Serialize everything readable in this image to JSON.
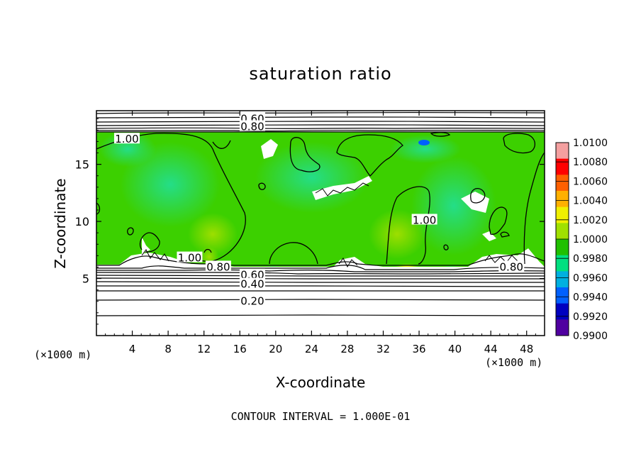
{
  "chart_data": {
    "type": "heatmap",
    "title": "saturation ratio",
    "xlabel": "X-coordinate",
    "ylabel": "Z-coordinate",
    "x_unit_left": "(×1000 m)",
    "x_unit_right": "(×1000 m)",
    "x_ticks": [
      "4",
      "8",
      "12",
      "16",
      "20",
      "24",
      "28",
      "32",
      "36",
      "40",
      "44",
      "48"
    ],
    "x_tick_values": [
      4,
      8,
      12,
      16,
      20,
      24,
      28,
      32,
      36,
      40,
      44,
      48
    ],
    "y_ticks": [
      "5",
      "10",
      "15"
    ],
    "y_tick_values": [
      5,
      10,
      15
    ],
    "xlim": [
      0,
      50
    ],
    "ylim": [
      0,
      19.7
    ],
    "colorbar": {
      "labels": [
        "1.0100",
        "1.0080",
        "1.0060",
        "1.0040",
        "1.0020",
        "1.0000",
        "0.9980",
        "0.9960",
        "0.9940",
        "0.9920",
        "0.9900"
      ],
      "colors": [
        "#f4a0a0",
        "#ff0000",
        "#ff6000",
        "#ffb000",
        "#f0f000",
        "#a0e000",
        "#20c000",
        "#00e080",
        "#00b0e0",
        "#0060ff",
        "#0000c0",
        "#5000a0"
      ]
    },
    "contour_labels": [
      {
        "text": "0.60",
        "x": 17.4,
        "y": 19.0
      },
      {
        "text": "0.80",
        "x": 17.4,
        "y": 18.3
      },
      {
        "text": "1.00",
        "x": 3.4,
        "y": 17.2
      },
      {
        "text": "1.00",
        "x": 36.6,
        "y": 10.1
      },
      {
        "text": "1.00",
        "x": 10.4,
        "y": 6.8
      },
      {
        "text": "0.80",
        "x": 13.6,
        "y": 6.0
      },
      {
        "text": "0.80",
        "x": 46.3,
        "y": 6.0
      },
      {
        "text": "0.60",
        "x": 17.4,
        "y": 5.3
      },
      {
        "text": "0.40",
        "x": 17.4,
        "y": 4.5
      },
      {
        "text": "0.20",
        "x": 17.4,
        "y": 3.0
      }
    ],
    "contour_interval_text": "CONTOUR INTERVAL = 1.000E-01",
    "grid": false,
    "legend": "right"
  }
}
